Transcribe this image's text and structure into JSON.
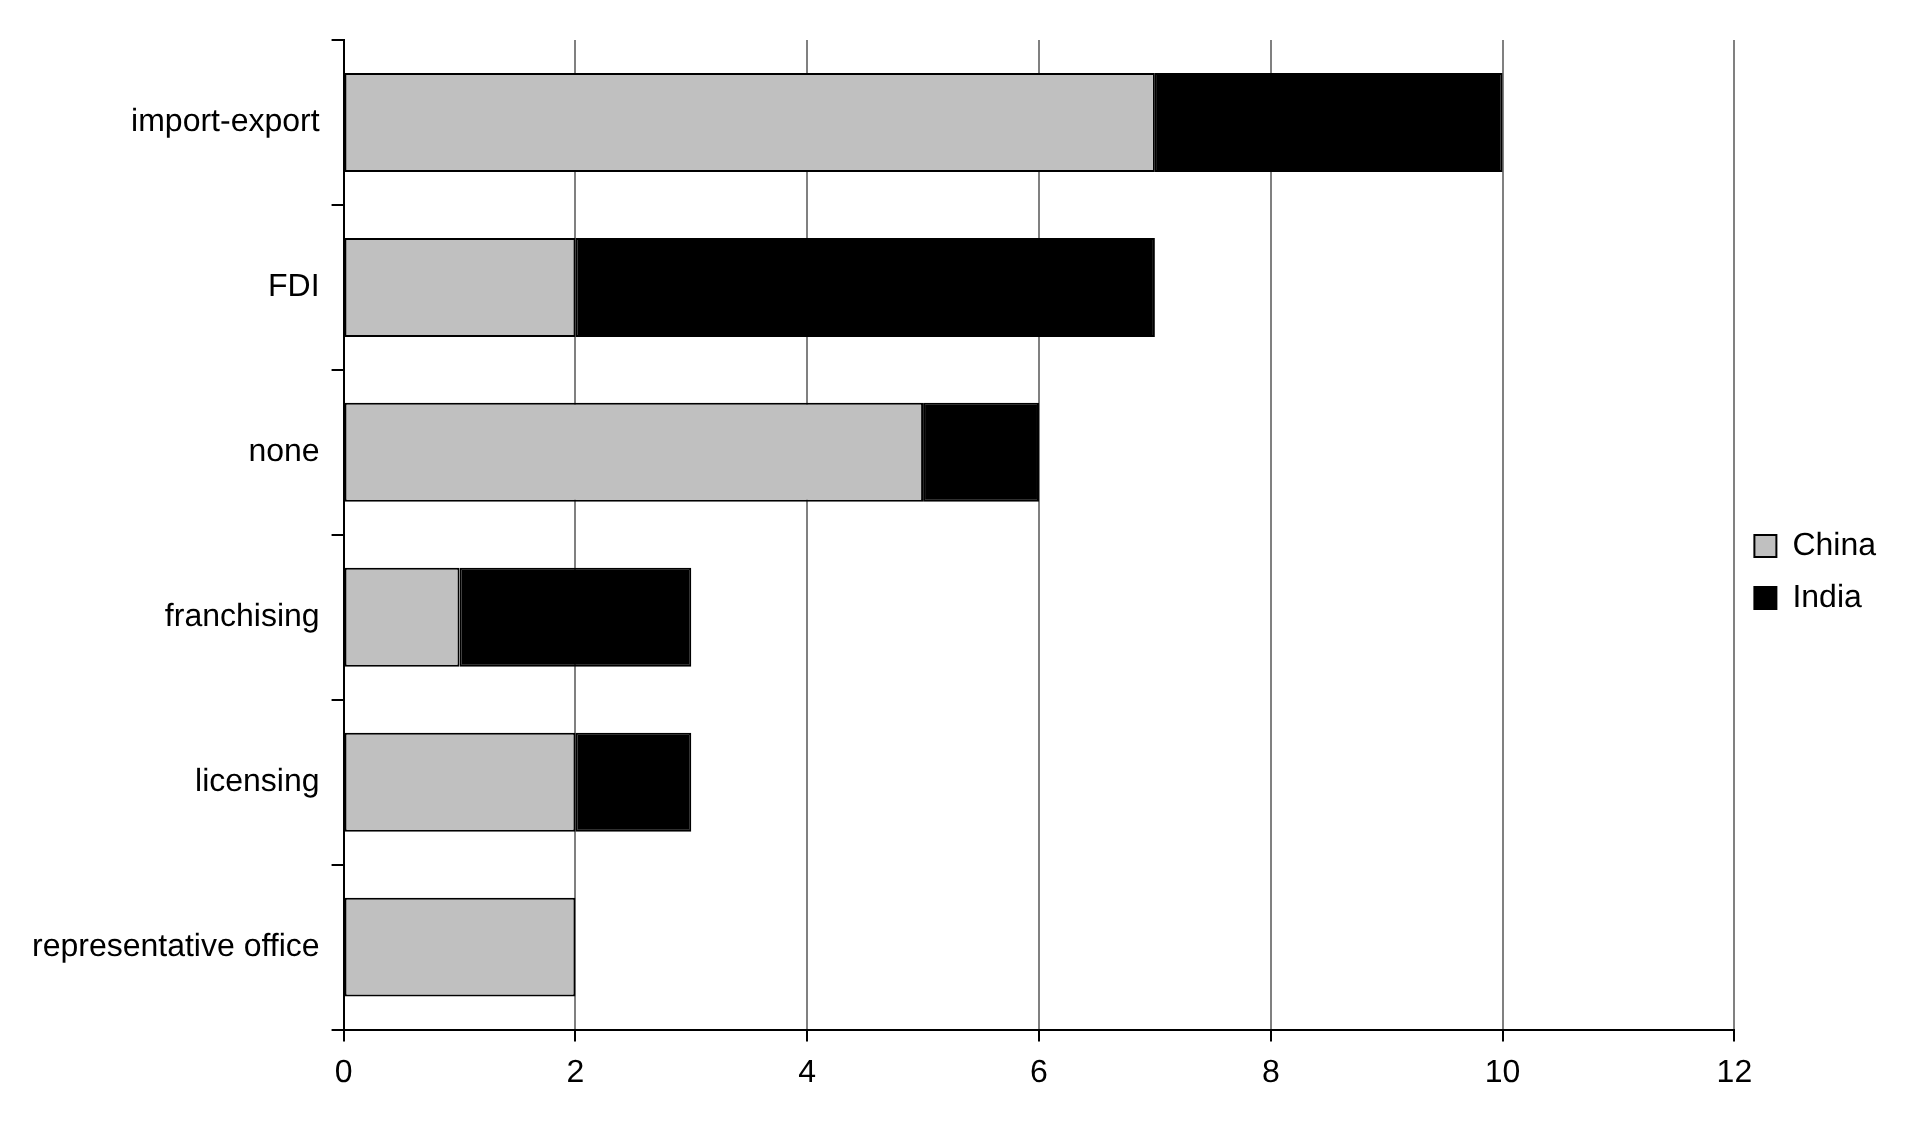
{
  "chart_data": {
    "type": "bar",
    "orientation": "horizontal",
    "stacked": true,
    "categories": [
      "import-export",
      "FDI",
      "none",
      "franchising",
      "licensing",
      "representative office"
    ],
    "series": [
      {
        "name": "China",
        "color": "#c0c0c0",
        "values": [
          7,
          2,
          5,
          1,
          2,
          2
        ]
      },
      {
        "name": "India",
        "color": "#000000",
        "values": [
          3,
          5,
          1,
          2,
          1,
          0
        ]
      }
    ],
    "xlim": [
      0,
      12
    ],
    "xticks": [
      0,
      2,
      4,
      6,
      8,
      10,
      12
    ],
    "grid": "x",
    "legend": "right"
  }
}
